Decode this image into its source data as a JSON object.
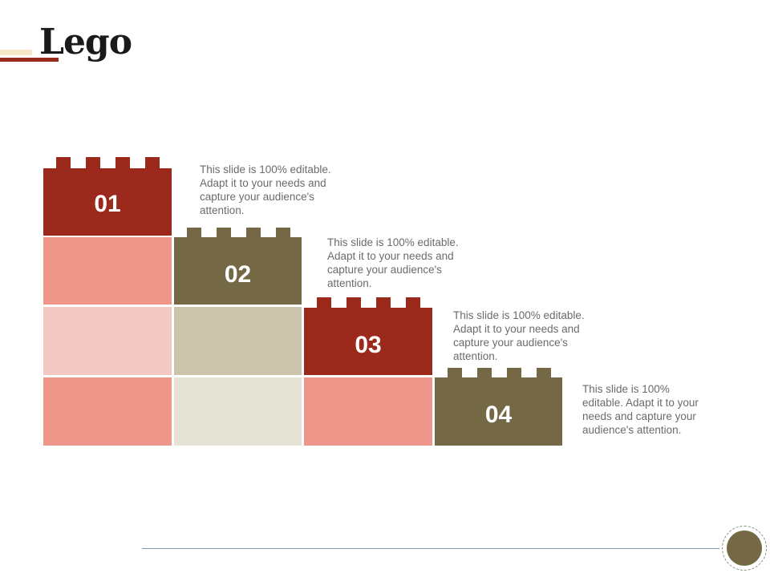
{
  "slide": {
    "title": "Lego"
  },
  "steps": [
    {
      "number": "01",
      "text": "This slide is 100% editable. Adapt it to your needs and capture your audience's attention."
    },
    {
      "number": "02",
      "text": "This slide is 100% editable. Adapt it to your needs and capture your audience's attention."
    },
    {
      "number": "03",
      "text": "This slide is 100% editable. Adapt it to your needs and capture your audience's attention."
    },
    {
      "number": "04",
      "text": "This slide is 100% editable. Adapt it to your needs and capture your audience's attention."
    }
  ],
  "colors": {
    "dark_red": "#9c2a1c",
    "salmon": "#ee968a",
    "pale_pink": "#f5c9c3",
    "olive": "#746845",
    "tan": "#cdc4ae",
    "cream": "#e5e2d6"
  }
}
